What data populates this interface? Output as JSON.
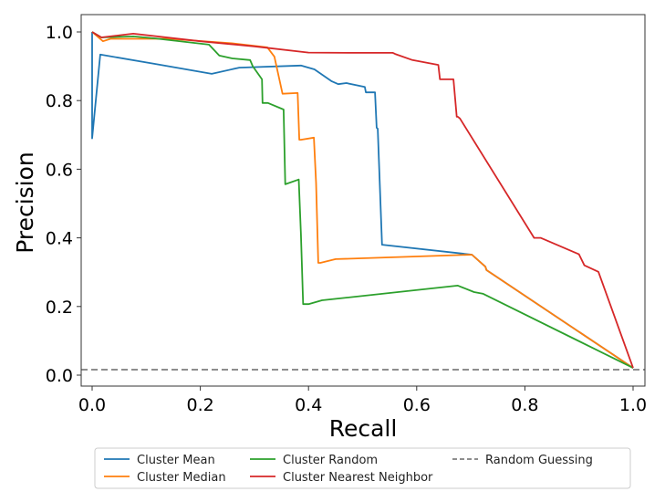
{
  "chart_data": {
    "type": "line",
    "title": "",
    "xlabel": "Recall",
    "ylabel": "Precision",
    "xlim": [
      -0.02,
      1.02
    ],
    "ylim": [
      -0.032,
      1.046
    ],
    "xticks": [
      "0.0",
      "0.2",
      "0.4",
      "0.6",
      "0.8",
      "1.0"
    ],
    "yticks": [
      "0.0",
      "0.2",
      "0.4",
      "0.6",
      "0.8",
      "1.0"
    ],
    "grid": false,
    "legend_position": "bottom",
    "series": [
      {
        "name": "Cluster Mean",
        "color": "#1f77b4",
        "style": "solid",
        "x": [
          0.0,
          0.0,
          0.015,
          0.116,
          0.221,
          0.272,
          0.386,
          0.411,
          0.443,
          0.455,
          0.47,
          0.504,
          0.506,
          0.523,
          0.526,
          0.528,
          0.536,
          0.702,
          0.727,
          0.729,
          1.0
        ],
        "y": [
          1.0,
          0.69,
          0.934,
          0.907,
          0.878,
          0.896,
          0.902,
          0.891,
          0.856,
          0.848,
          0.851,
          0.84,
          0.824,
          0.824,
          0.721,
          0.718,
          0.38,
          0.351,
          0.316,
          0.306,
          0.021
        ]
      },
      {
        "name": "Cluster Median",
        "color": "#ff7f0e",
        "style": "solid",
        "x": [
          0.0,
          0.02,
          0.034,
          0.142,
          0.258,
          0.324,
          0.337,
          0.352,
          0.38,
          0.383,
          0.386,
          0.41,
          0.414,
          0.418,
          0.422,
          0.45,
          0.702,
          0.727,
          0.729,
          1.0
        ],
        "y": [
          1.0,
          0.973,
          0.98,
          0.98,
          0.967,
          0.955,
          0.928,
          0.82,
          0.822,
          0.686,
          0.686,
          0.692,
          0.56,
          0.327,
          0.327,
          0.338,
          0.351,
          0.316,
          0.306,
          0.021
        ]
      },
      {
        "name": "Cluster Random",
        "color": "#2ca02c",
        "style": "solid",
        "x": [
          0.0,
          0.017,
          0.076,
          0.117,
          0.216,
          0.235,
          0.259,
          0.292,
          0.297,
          0.314,
          0.315,
          0.325,
          0.354,
          0.357,
          0.382,
          0.386,
          0.39,
          0.4,
          0.425,
          0.676,
          0.706,
          0.723,
          1.0
        ],
        "y": [
          1.0,
          0.984,
          0.987,
          0.981,
          0.963,
          0.931,
          0.923,
          0.918,
          0.9,
          0.862,
          0.793,
          0.793,
          0.774,
          0.556,
          0.57,
          0.41,
          0.207,
          0.207,
          0.218,
          0.261,
          0.242,
          0.237,
          0.021
        ]
      },
      {
        "name": "Cluster Nearest Neighbor",
        "color": "#d62728",
        "style": "solid",
        "x": [
          0.0,
          0.017,
          0.076,
          0.2,
          0.3,
          0.4,
          0.48,
          0.556,
          0.56,
          0.592,
          0.64,
          0.643,
          0.668,
          0.674,
          0.676,
          0.68,
          0.817,
          0.829,
          0.9,
          0.91,
          0.936,
          1.0
        ],
        "y": [
          1.0,
          0.984,
          0.995,
          0.973,
          0.958,
          0.94,
          0.939,
          0.939,
          0.936,
          0.918,
          0.904,
          0.862,
          0.862,
          0.753,
          0.753,
          0.748,
          0.4,
          0.4,
          0.352,
          0.32,
          0.301,
          0.021
        ]
      },
      {
        "name": "Random Guessing",
        "color": "#7f7f7f",
        "style": "dashed",
        "x": [
          -0.02,
          1.02
        ],
        "y": [
          0.016,
          0.016
        ]
      }
    ],
    "legend_columns": [
      [
        "Cluster Mean",
        "Cluster Median"
      ],
      [
        "Cluster Random",
        "Cluster Nearest Neighbor"
      ],
      [
        "Random Guessing"
      ]
    ]
  }
}
